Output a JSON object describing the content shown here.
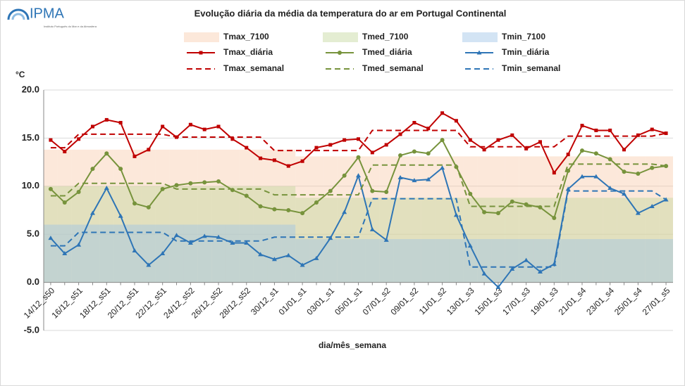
{
  "logo": {
    "text": "IPMA",
    "subtitle": "Instituto Português do Mar e da Atmosfera"
  },
  "chart_data": {
    "type": "line",
    "title": "Evolução diária da média da temperatura do ar em Portugal Continental",
    "y_label": "°C",
    "x_label": "dia/mês_semana",
    "categories": [
      "14/12_s50",
      null,
      "16/12_s51",
      null,
      "18/12_s51",
      null,
      "20/12_s51",
      null,
      "22/12_s51",
      null,
      "24/12_s52",
      null,
      "26/12_s52",
      null,
      "28/12_s52",
      null,
      "30/12_s1",
      null,
      "01/01_s1",
      null,
      "03/01_s1",
      null,
      "05/01_s1",
      null,
      "07/01_s2",
      null,
      "09/01_s2",
      null,
      "11/01_s2",
      null,
      "13/01_s3",
      null,
      "15/01_s3",
      null,
      "17/01_s3",
      null,
      "19/01_s3",
      null,
      "21/01_s4",
      null,
      "23/01_s4",
      null,
      "25/01_s4",
      null,
      "27/01_s5"
    ],
    "ylim": [
      -5,
      20
    ],
    "yticks": [
      {
        "value": -5,
        "label": "-5.0"
      },
      {
        "value": 0,
        "label": "0.0"
      },
      {
        "value": 5,
        "label": "5.0"
      },
      {
        "value": 10,
        "label": "10.0"
      },
      {
        "value": 15,
        "label": "15.0"
      },
      {
        "value": 20,
        "label": "20.0"
      }
    ],
    "grid": true,
    "series": [
      {
        "name": "Tmax_7100",
        "color": "#f8cbad",
        "style": "area",
        "values": [
          13.8,
          13.8,
          13.8,
          13.8,
          13.8,
          13.8,
          13.8,
          13.8,
          13.8,
          13.8,
          13.8,
          13.8,
          13.8,
          13.8,
          13.8,
          13.8,
          13.8,
          13.8,
          13.1,
          13.1,
          13.1,
          13.1,
          13.1,
          13.1,
          13.1,
          13.1,
          13.1,
          13.1,
          13.1,
          13.1,
          13.1,
          13.1,
          13.1,
          13.1,
          13.1,
          13.1,
          13.1,
          13.1,
          13.1,
          13.1,
          13.1,
          13.1,
          13.1,
          13.1,
          13.1
        ]
      },
      {
        "name": "Tmed_7100",
        "color": "#c4d79b",
        "style": "area",
        "values": [
          10.0,
          10.0,
          10.0,
          10.0,
          10.0,
          10.0,
          10.0,
          10.0,
          10.0,
          10.0,
          10.0,
          10.0,
          10.0,
          10.0,
          10.0,
          10.0,
          10.0,
          10.0,
          8.8,
          8.8,
          8.8,
          8.8,
          8.8,
          8.8,
          8.8,
          8.8,
          8.8,
          8.8,
          8.8,
          8.8,
          8.8,
          8.8,
          8.8,
          8.8,
          8.8,
          8.8,
          8.8,
          8.8,
          8.8,
          8.8,
          8.8,
          8.8,
          8.8,
          8.8,
          8.8
        ]
      },
      {
        "name": "Tmin_7100",
        "color": "#9dc3e6",
        "style": "area",
        "values": [
          6.0,
          6.0,
          6.0,
          6.0,
          6.0,
          6.0,
          6.0,
          6.0,
          6.0,
          6.0,
          6.0,
          6.0,
          6.0,
          6.0,
          6.0,
          6.0,
          6.0,
          6.0,
          4.5,
          4.5,
          4.5,
          4.5,
          4.5,
          4.5,
          4.5,
          4.5,
          4.5,
          4.5,
          4.5,
          4.5,
          4.5,
          4.5,
          4.5,
          4.5,
          4.5,
          4.5,
          4.5,
          4.5,
          4.5,
          4.5,
          4.5,
          4.5,
          4.5,
          4.5,
          4.5
        ]
      },
      {
        "name": "Tmax_diária",
        "color": "#c00000",
        "style": "line",
        "marker": "square",
        "values": [
          14.8,
          13.6,
          14.9,
          16.2,
          16.9,
          16.6,
          13.1,
          13.8,
          16.2,
          15.1,
          16.4,
          15.9,
          16.2,
          14.9,
          14.0,
          12.9,
          12.7,
          12.1,
          12.6,
          14.0,
          14.3,
          14.8,
          14.9,
          13.5,
          14.3,
          15.4,
          16.6,
          16.0,
          17.6,
          16.8,
          14.8,
          13.8,
          14.8,
          15.3,
          13.9,
          14.6,
          11.4,
          13.3,
          16.3,
          15.8,
          15.8,
          13.8,
          15.3,
          15.9,
          15.5
        ]
      },
      {
        "name": "Tmed_diária",
        "color": "#77933c",
        "style": "line",
        "marker": "circle",
        "values": [
          9.7,
          8.3,
          9.4,
          11.8,
          13.4,
          11.8,
          8.2,
          7.8,
          9.7,
          10.1,
          10.3,
          10.4,
          10.5,
          9.6,
          9.0,
          7.9,
          7.6,
          7.5,
          7.2,
          8.3,
          9.5,
          11.1,
          13.0,
          9.5,
          9.4,
          13.2,
          13.6,
          13.4,
          14.8,
          12.0,
          9.2,
          7.3,
          7.2,
          8.4,
          8.1,
          7.8,
          6.7,
          11.6,
          13.7,
          13.4,
          12.8,
          11.5,
          11.3,
          11.9,
          12.1
        ]
      },
      {
        "name": "Tmin_diária",
        "color": "#2e75b6",
        "style": "line",
        "marker": "triangle",
        "values": [
          4.6,
          3.0,
          3.9,
          7.2,
          9.8,
          6.9,
          3.3,
          1.8,
          3.0,
          4.9,
          4.1,
          4.8,
          4.7,
          4.1,
          4.1,
          2.9,
          2.4,
          2.8,
          1.8,
          2.5,
          4.6,
          7.3,
          11.1,
          5.5,
          4.4,
          10.9,
          10.6,
          10.7,
          11.9,
          7.0,
          3.8,
          0.9,
          -0.5,
          1.4,
          2.3,
          1.1,
          1.9,
          9.7,
          11.0,
          11.0,
          9.8,
          9.2,
          7.2,
          7.9,
          8.6
        ]
      },
      {
        "name": "Tmax_semanal",
        "color": "#c00000",
        "style": "dashed",
        "values": [
          14.0,
          14.0,
          15.4,
          15.4,
          15.4,
          15.4,
          15.4,
          15.4,
          15.4,
          15.1,
          15.1,
          15.1,
          15.1,
          15.1,
          15.1,
          15.1,
          13.7,
          13.7,
          13.7,
          13.7,
          13.7,
          13.7,
          13.7,
          15.8,
          15.8,
          15.8,
          15.8,
          15.8,
          15.8,
          15.8,
          14.1,
          14.1,
          14.1,
          14.1,
          14.1,
          14.1,
          14.1,
          15.2,
          15.2,
          15.2,
          15.2,
          15.2,
          15.2,
          15.2,
          15.5
        ]
      },
      {
        "name": "Tmed_semanal",
        "color": "#77933c",
        "style": "dashed",
        "values": [
          9.0,
          9.0,
          10.3,
          10.3,
          10.3,
          10.3,
          10.3,
          10.3,
          10.3,
          9.7,
          9.7,
          9.7,
          9.7,
          9.7,
          9.7,
          9.7,
          9.1,
          9.1,
          9.1,
          9.1,
          9.1,
          9.1,
          9.1,
          12.2,
          12.2,
          12.2,
          12.2,
          12.2,
          12.2,
          12.2,
          7.9,
          7.9,
          7.9,
          7.9,
          7.9,
          7.9,
          7.9,
          12.3,
          12.3,
          12.3,
          12.3,
          12.3,
          12.3,
          12.3,
          12.1
        ]
      },
      {
        "name": "Tmin_semanal",
        "color": "#2e75b6",
        "style": "dashed",
        "values": [
          3.8,
          3.8,
          5.2,
          5.2,
          5.2,
          5.2,
          5.2,
          5.2,
          5.2,
          4.3,
          4.3,
          4.3,
          4.3,
          4.3,
          4.3,
          4.3,
          4.7,
          4.7,
          4.7,
          4.7,
          4.7,
          4.7,
          4.7,
          8.7,
          8.7,
          8.7,
          8.7,
          8.7,
          8.7,
          8.7,
          1.6,
          1.6,
          1.6,
          1.6,
          1.6,
          1.6,
          1.6,
          9.5,
          9.5,
          9.5,
          9.5,
          9.5,
          9.5,
          9.5,
          8.6
        ]
      }
    ]
  }
}
